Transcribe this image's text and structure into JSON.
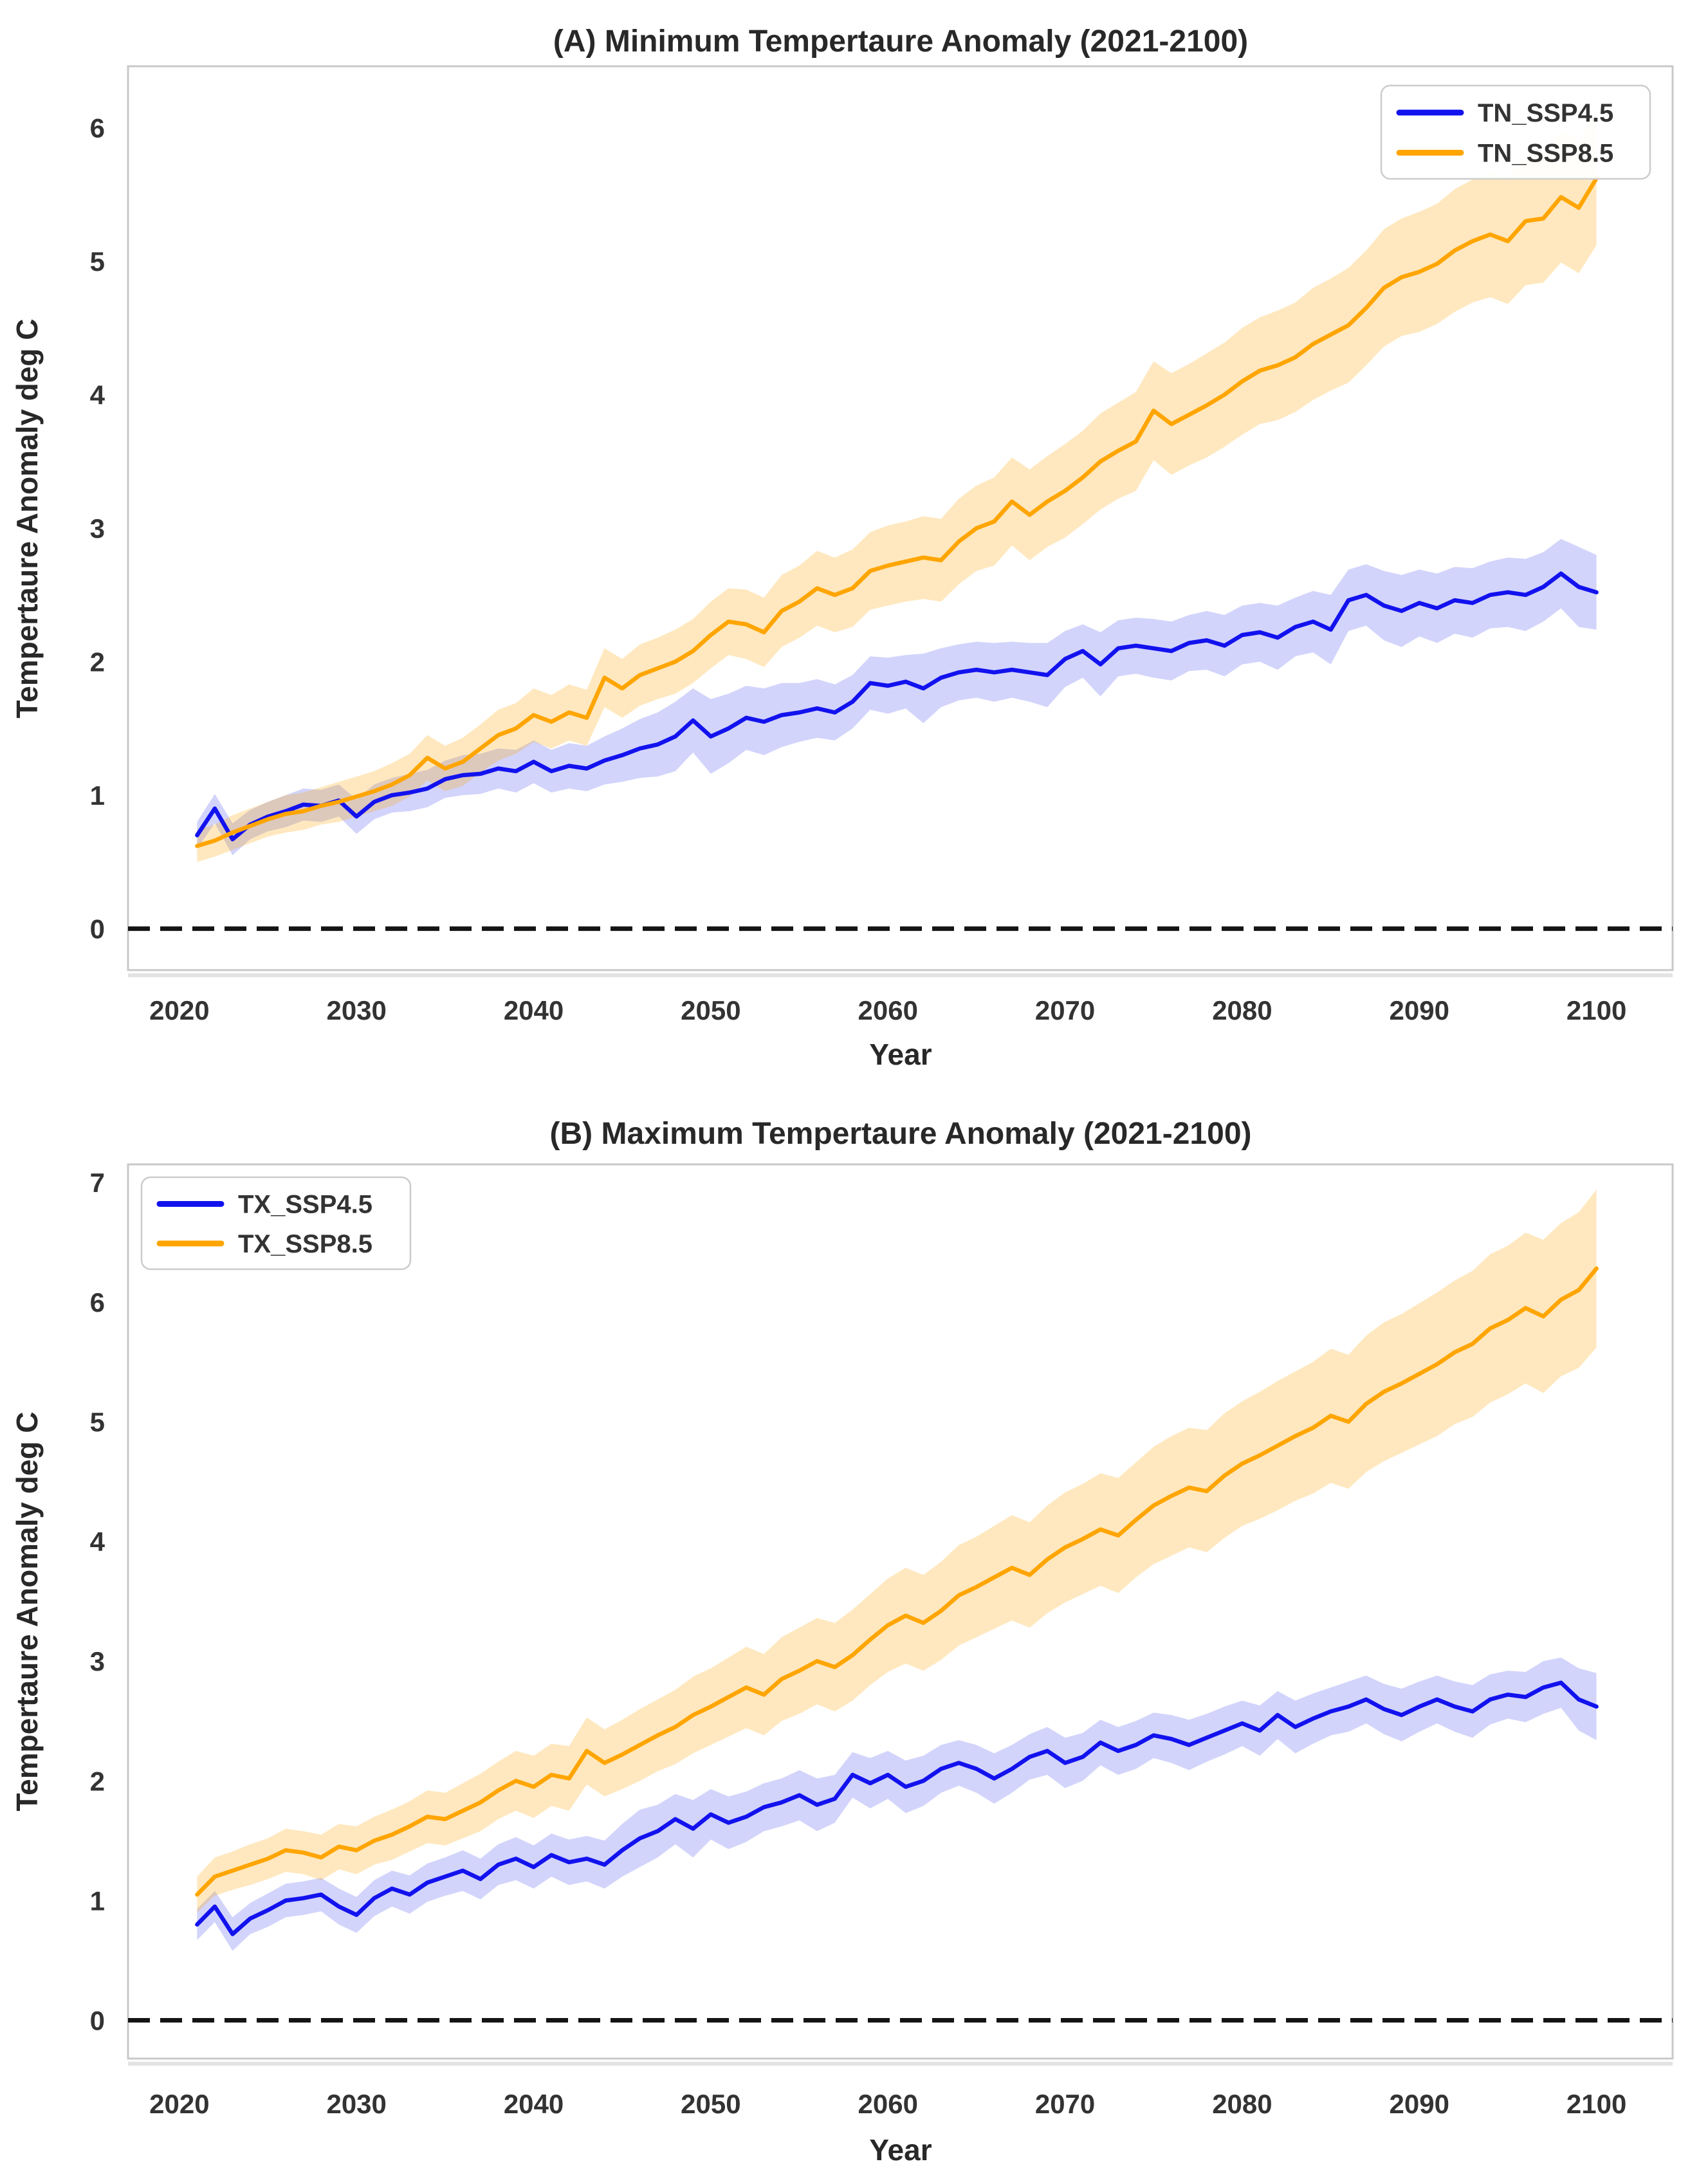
{
  "page": {
    "background": "#ffffff"
  },
  "chart_data": [
    {
      "type": "line",
      "panel": "A",
      "title": "(A) Minimum Tempertaure Anomaly (2021-2100)",
      "xlabel": "Year",
      "ylabel": "Tempertaure Anomaly deg C",
      "xlim": [
        2017.1,
        2104.3
      ],
      "ylim": [
        -0.31,
        6.46
      ],
      "xticks": [
        2020,
        2030,
        2040,
        2050,
        2060,
        2070,
        2080,
        2090,
        2100
      ],
      "yticks": [
        0,
        1,
        2,
        3,
        4,
        5,
        6
      ],
      "grid": false,
      "zero_line": {
        "y": 0,
        "style": "dashed",
        "color": "#141414"
      },
      "legend": {
        "position": "upper-right",
        "entries": [
          {
            "label": "TN_SSP4.5",
            "color": "#1212ee"
          },
          {
            "label": "TN_SSP8.5",
            "color": "#ffa502"
          }
        ]
      },
      "x_years": {
        "start": 2021,
        "end": 2100,
        "step": 1
      },
      "series": [
        {
          "name": "TN_SSP4.5",
          "color": "#1212ee",
          "band_color": "rgba(30,40,235,0.20)",
          "values": [
            0.7,
            0.9,
            0.67,
            0.78,
            0.84,
            0.88,
            0.93,
            0.92,
            0.96,
            0.84,
            0.95,
            1.0,
            1.02,
            1.05,
            1.12,
            1.15,
            1.16,
            1.2,
            1.18,
            1.25,
            1.18,
            1.22,
            1.2,
            1.26,
            1.3,
            1.35,
            1.38,
            1.44,
            1.56,
            1.44,
            1.5,
            1.58,
            1.55,
            1.6,
            1.62,
            1.65,
            1.62,
            1.7,
            1.84,
            1.82,
            1.85,
            1.8,
            1.88,
            1.92,
            1.94,
            1.92,
            1.94,
            1.92,
            1.9,
            2.02,
            2.08,
            1.98,
            2.1,
            2.12,
            2.1,
            2.08,
            2.14,
            2.16,
            2.12,
            2.2,
            2.22,
            2.18,
            2.26,
            2.3,
            2.24,
            2.46,
            2.5,
            2.42,
            2.38,
            2.44,
            2.4,
            2.46,
            2.44,
            2.5,
            2.52,
            2.5,
            2.56,
            2.66,
            2.56,
            2.52
          ],
          "band_halfwidth": [
            0.1,
            0.11,
            0.12,
            0.11,
            0.11,
            0.12,
            0.12,
            0.12,
            0.12,
            0.13,
            0.13,
            0.13,
            0.14,
            0.14,
            0.14,
            0.15,
            0.15,
            0.15,
            0.16,
            0.16,
            0.16,
            0.17,
            0.17,
            0.18,
            0.2,
            0.22,
            0.24,
            0.26,
            0.24,
            0.28,
            0.26,
            0.24,
            0.25,
            0.24,
            0.22,
            0.22,
            0.21,
            0.2,
            0.2,
            0.21,
            0.2,
            0.26,
            0.22,
            0.21,
            0.21,
            0.22,
            0.21,
            0.22,
            0.24,
            0.21,
            0.2,
            0.24,
            0.21,
            0.21,
            0.22,
            0.22,
            0.21,
            0.22,
            0.23,
            0.22,
            0.22,
            0.24,
            0.22,
            0.23,
            0.26,
            0.23,
            0.23,
            0.26,
            0.27,
            0.25,
            0.26,
            0.25,
            0.26,
            0.25,
            0.26,
            0.27,
            0.26,
            0.26,
            0.3,
            0.28
          ]
        },
        {
          "name": "TN_SSP8.5",
          "color": "#ffa502",
          "band_color": "rgba(255,166,8,0.26)",
          "values": [
            0.62,
            0.66,
            0.72,
            0.77,
            0.82,
            0.86,
            0.88,
            0.92,
            0.95,
            0.99,
            1.03,
            1.08,
            1.15,
            1.28,
            1.2,
            1.25,
            1.35,
            1.45,
            1.5,
            1.6,
            1.55,
            1.62,
            1.58,
            1.88,
            1.8,
            1.9,
            1.95,
            2.0,
            2.08,
            2.2,
            2.3,
            2.28,
            2.22,
            2.38,
            2.45,
            2.55,
            2.5,
            2.55,
            2.68,
            2.72,
            2.75,
            2.78,
            2.76,
            2.9,
            3.0,
            3.05,
            3.2,
            3.1,
            3.2,
            3.28,
            3.38,
            3.5,
            3.58,
            3.65,
            3.88,
            3.78,
            3.85,
            3.92,
            4.0,
            4.1,
            4.18,
            4.22,
            4.28,
            4.38,
            4.45,
            4.52,
            4.65,
            4.8,
            4.88,
            4.92,
            4.98,
            5.08,
            5.15,
            5.2,
            5.15,
            5.3,
            5.32,
            5.48,
            5.4,
            5.62
          ],
          "band_halfwidth": [
            0.12,
            0.12,
            0.13,
            0.13,
            0.13,
            0.14,
            0.14,
            0.14,
            0.15,
            0.15,
            0.15,
            0.16,
            0.16,
            0.17,
            0.17,
            0.18,
            0.18,
            0.19,
            0.19,
            0.2,
            0.2,
            0.21,
            0.21,
            0.22,
            0.22,
            0.23,
            0.23,
            0.24,
            0.24,
            0.25,
            0.25,
            0.26,
            0.26,
            0.27,
            0.27,
            0.28,
            0.28,
            0.29,
            0.29,
            0.3,
            0.3,
            0.31,
            0.31,
            0.32,
            0.32,
            0.33,
            0.33,
            0.34,
            0.34,
            0.35,
            0.35,
            0.36,
            0.36,
            0.37,
            0.37,
            0.38,
            0.38,
            0.39,
            0.39,
            0.4,
            0.4,
            0.41,
            0.41,
            0.42,
            0.42,
            0.43,
            0.43,
            0.44,
            0.44,
            0.45,
            0.45,
            0.46,
            0.46,
            0.47,
            0.47,
            0.48,
            0.48,
            0.49,
            0.49,
            0.5
          ]
        }
      ]
    },
    {
      "type": "line",
      "panel": "B",
      "title": "(B) Maximum Tempertaure Anomaly (2021-2100)",
      "xlabel": "Year",
      "ylabel": "Tempertaure Anomaly deg C",
      "xlim": [
        2017.1,
        2104.3
      ],
      "ylim": [
        -0.32,
        7.15
      ],
      "xticks": [
        2020,
        2030,
        2040,
        2050,
        2060,
        2070,
        2080,
        2090,
        2100
      ],
      "yticks": [
        0,
        1,
        2,
        3,
        4,
        5,
        6,
        7
      ],
      "grid": false,
      "zero_line": {
        "y": 0,
        "style": "dashed",
        "color": "#141414"
      },
      "legend": {
        "position": "upper-left",
        "entries": [
          {
            "label": "TX_SSP4.5",
            "color": "#1212ee"
          },
          {
            "label": "TX_SSP8.5",
            "color": "#ffa502"
          }
        ]
      },
      "x_years": {
        "start": 2021,
        "end": 2100,
        "step": 1
      },
      "series": [
        {
          "name": "TX_SSP4.5",
          "color": "#1212ee",
          "band_color": "rgba(30,40,235,0.20)",
          "values": [
            0.8,
            0.95,
            0.72,
            0.85,
            0.92,
            1.0,
            1.02,
            1.05,
            0.95,
            0.88,
            1.02,
            1.1,
            1.05,
            1.15,
            1.2,
            1.25,
            1.18,
            1.3,
            1.35,
            1.28,
            1.38,
            1.32,
            1.35,
            1.3,
            1.42,
            1.52,
            1.58,
            1.68,
            1.6,
            1.72,
            1.65,
            1.7,
            1.78,
            1.82,
            1.88,
            1.8,
            1.85,
            2.05,
            1.98,
            2.05,
            1.95,
            2.0,
            2.1,
            2.15,
            2.1,
            2.02,
            2.1,
            2.2,
            2.25,
            2.15,
            2.2,
            2.32,
            2.25,
            2.3,
            2.38,
            2.35,
            2.3,
            2.36,
            2.42,
            2.48,
            2.42,
            2.55,
            2.45,
            2.52,
            2.58,
            2.62,
            2.68,
            2.6,
            2.55,
            2.62,
            2.68,
            2.62,
            2.58,
            2.68,
            2.72,
            2.7,
            2.78,
            2.82,
            2.68,
            2.62
          ],
          "band_halfwidth": [
            0.13,
            0.13,
            0.14,
            0.13,
            0.14,
            0.14,
            0.14,
            0.14,
            0.15,
            0.15,
            0.15,
            0.15,
            0.16,
            0.16,
            0.16,
            0.17,
            0.17,
            0.17,
            0.18,
            0.18,
            0.18,
            0.19,
            0.19,
            0.2,
            0.22,
            0.24,
            0.22,
            0.21,
            0.24,
            0.21,
            0.22,
            0.21,
            0.2,
            0.2,
            0.21,
            0.22,
            0.2,
            0.19,
            0.21,
            0.2,
            0.22,
            0.21,
            0.2,
            0.19,
            0.2,
            0.21,
            0.2,
            0.19,
            0.2,
            0.21,
            0.2,
            0.19,
            0.2,
            0.2,
            0.19,
            0.2,
            0.21,
            0.2,
            0.2,
            0.19,
            0.21,
            0.2,
            0.22,
            0.21,
            0.2,
            0.21,
            0.2,
            0.21,
            0.22,
            0.21,
            0.2,
            0.21,
            0.22,
            0.21,
            0.2,
            0.21,
            0.22,
            0.21,
            0.26,
            0.28
          ]
        },
        {
          "name": "TX_SSP8.5",
          "color": "#ffa502",
          "band_color": "rgba(255,166,8,0.26)",
          "values": [
            1.05,
            1.2,
            1.25,
            1.3,
            1.35,
            1.42,
            1.4,
            1.36,
            1.45,
            1.42,
            1.5,
            1.55,
            1.62,
            1.7,
            1.68,
            1.75,
            1.82,
            1.92,
            2.0,
            1.95,
            2.05,
            2.02,
            2.25,
            2.15,
            2.22,
            2.3,
            2.38,
            2.45,
            2.55,
            2.62,
            2.7,
            2.78,
            2.72,
            2.85,
            2.92,
            3.0,
            2.95,
            3.05,
            3.18,
            3.3,
            3.38,
            3.32,
            3.42,
            3.55,
            3.62,
            3.7,
            3.78,
            3.72,
            3.85,
            3.95,
            4.02,
            4.1,
            4.05,
            4.18,
            4.3,
            4.38,
            4.45,
            4.42,
            4.55,
            4.65,
            4.72,
            4.8,
            4.88,
            4.95,
            5.05,
            5.0,
            5.15,
            5.25,
            5.32,
            5.4,
            5.48,
            5.58,
            5.65,
            5.78,
            5.85,
            5.95,
            5.88,
            6.02,
            6.1,
            6.28
          ],
          "band_halfwidth": [
            0.15,
            0.16,
            0.16,
            0.17,
            0.17,
            0.18,
            0.18,
            0.19,
            0.19,
            0.2,
            0.2,
            0.21,
            0.21,
            0.22,
            0.22,
            0.23,
            0.24,
            0.24,
            0.25,
            0.26,
            0.26,
            0.27,
            0.28,
            0.28,
            0.29,
            0.3,
            0.3,
            0.31,
            0.32,
            0.32,
            0.33,
            0.34,
            0.34,
            0.35,
            0.36,
            0.36,
            0.37,
            0.38,
            0.38,
            0.39,
            0.4,
            0.4,
            0.41,
            0.42,
            0.42,
            0.43,
            0.44,
            0.44,
            0.45,
            0.46,
            0.46,
            0.47,
            0.48,
            0.48,
            0.49,
            0.5,
            0.5,
            0.51,
            0.52,
            0.52,
            0.53,
            0.54,
            0.54,
            0.55,
            0.56,
            0.56,
            0.57,
            0.58,
            0.58,
            0.59,
            0.6,
            0.6,
            0.61,
            0.62,
            0.62,
            0.63,
            0.64,
            0.64,
            0.65,
            0.66
          ]
        }
      ]
    }
  ]
}
